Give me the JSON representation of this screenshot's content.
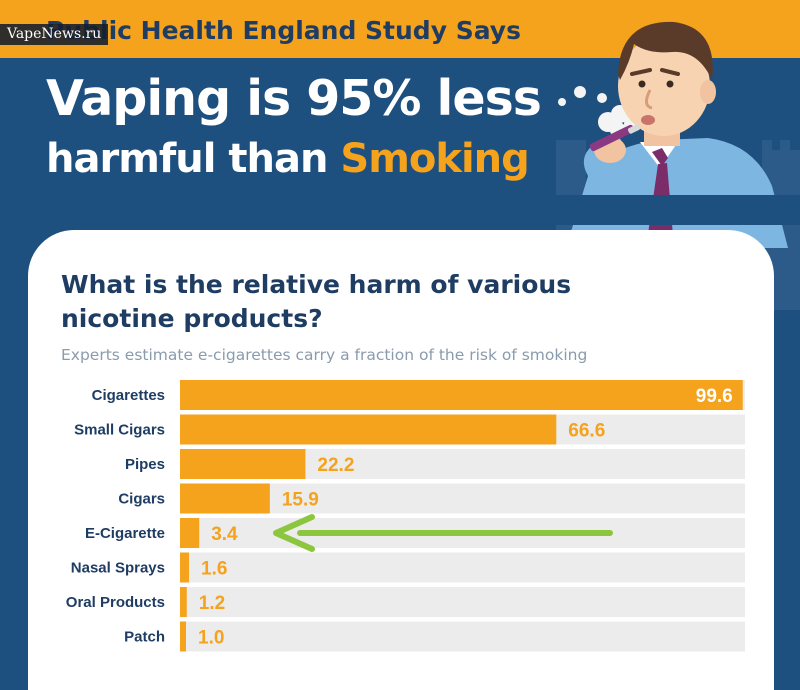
{
  "watermark": "VapeNews.ru",
  "header": {
    "kicker": "Public Health England Study Says",
    "headline_line1": "Vaping is 95% less",
    "headline_line2_prefix": "harmful than ",
    "headline_line2_accent": "Smoking"
  },
  "card": {
    "question": "What is the relative harm of various nicotine products?",
    "subtitle": "Experts estimate e-cigarettes carry a fraction of the risk of smoking"
  },
  "colors": {
    "background": "#1d4f7f",
    "accent": "#f5a21d",
    "title_text": "#1f3d63",
    "track": "#ececec",
    "arrow": "#8cc63f"
  },
  "chart_data": {
    "type": "bar",
    "orientation": "horizontal",
    "categories": [
      "Cigarettes",
      "Small Cigars",
      "Pipes",
      "Cigars",
      "E-Cigarette",
      "Nasal Sprays",
      "Oral Products",
      "Patch"
    ],
    "values": [
      99.6,
      66.6,
      22.2,
      15.9,
      3.4,
      1.6,
      1.2,
      1.0
    ],
    "xlim": [
      0,
      100
    ],
    "highlight": "E-Cigarette",
    "highlight_marker": "arrow"
  }
}
